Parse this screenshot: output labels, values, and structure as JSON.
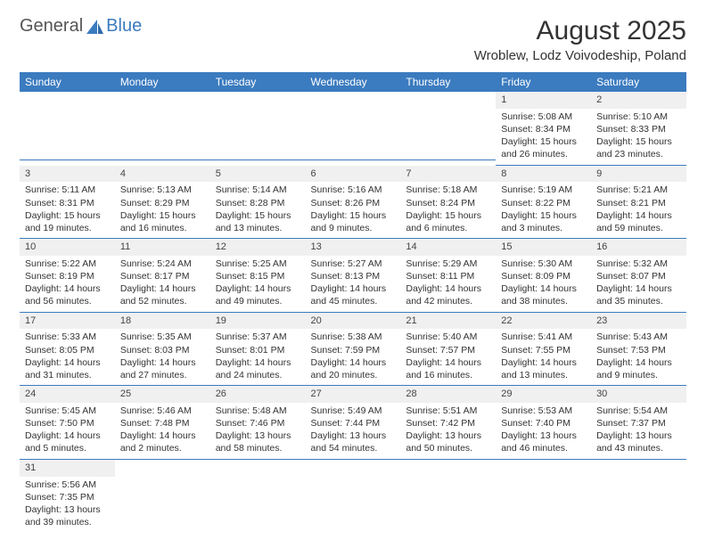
{
  "logo": {
    "part1": "General",
    "part2": "Blue"
  },
  "title": "August 2025",
  "subtitle": "Wroblew, Lodz Voivodeship, Poland",
  "colors": {
    "header_bg": "#3b7bbf",
    "header_text": "#ffffff",
    "daynum_bg": "#f0f0f0",
    "row_divider": "#3b7bbf",
    "text": "#333333"
  },
  "typography": {
    "title_fontsize": 30,
    "subtitle_fontsize": 15,
    "header_fontsize": 12,
    "cell_fontsize": 10.5
  },
  "day_headers": [
    "Sunday",
    "Monday",
    "Tuesday",
    "Wednesday",
    "Thursday",
    "Friday",
    "Saturday"
  ],
  "weeks": [
    [
      null,
      null,
      null,
      null,
      null,
      {
        "n": "1",
        "sr": "Sunrise: 5:08 AM",
        "ss": "Sunset: 8:34 PM",
        "dl": "Daylight: 15 hours and 26 minutes."
      },
      {
        "n": "2",
        "sr": "Sunrise: 5:10 AM",
        "ss": "Sunset: 8:33 PM",
        "dl": "Daylight: 15 hours and 23 minutes."
      }
    ],
    [
      {
        "n": "3",
        "sr": "Sunrise: 5:11 AM",
        "ss": "Sunset: 8:31 PM",
        "dl": "Daylight: 15 hours and 19 minutes."
      },
      {
        "n": "4",
        "sr": "Sunrise: 5:13 AM",
        "ss": "Sunset: 8:29 PM",
        "dl": "Daylight: 15 hours and 16 minutes."
      },
      {
        "n": "5",
        "sr": "Sunrise: 5:14 AM",
        "ss": "Sunset: 8:28 PM",
        "dl": "Daylight: 15 hours and 13 minutes."
      },
      {
        "n": "6",
        "sr": "Sunrise: 5:16 AM",
        "ss": "Sunset: 8:26 PM",
        "dl": "Daylight: 15 hours and 9 minutes."
      },
      {
        "n": "7",
        "sr": "Sunrise: 5:18 AM",
        "ss": "Sunset: 8:24 PM",
        "dl": "Daylight: 15 hours and 6 minutes."
      },
      {
        "n": "8",
        "sr": "Sunrise: 5:19 AM",
        "ss": "Sunset: 8:22 PM",
        "dl": "Daylight: 15 hours and 3 minutes."
      },
      {
        "n": "9",
        "sr": "Sunrise: 5:21 AM",
        "ss": "Sunset: 8:21 PM",
        "dl": "Daylight: 14 hours and 59 minutes."
      }
    ],
    [
      {
        "n": "10",
        "sr": "Sunrise: 5:22 AM",
        "ss": "Sunset: 8:19 PM",
        "dl": "Daylight: 14 hours and 56 minutes."
      },
      {
        "n": "11",
        "sr": "Sunrise: 5:24 AM",
        "ss": "Sunset: 8:17 PM",
        "dl": "Daylight: 14 hours and 52 minutes."
      },
      {
        "n": "12",
        "sr": "Sunrise: 5:25 AM",
        "ss": "Sunset: 8:15 PM",
        "dl": "Daylight: 14 hours and 49 minutes."
      },
      {
        "n": "13",
        "sr": "Sunrise: 5:27 AM",
        "ss": "Sunset: 8:13 PM",
        "dl": "Daylight: 14 hours and 45 minutes."
      },
      {
        "n": "14",
        "sr": "Sunrise: 5:29 AM",
        "ss": "Sunset: 8:11 PM",
        "dl": "Daylight: 14 hours and 42 minutes."
      },
      {
        "n": "15",
        "sr": "Sunrise: 5:30 AM",
        "ss": "Sunset: 8:09 PM",
        "dl": "Daylight: 14 hours and 38 minutes."
      },
      {
        "n": "16",
        "sr": "Sunrise: 5:32 AM",
        "ss": "Sunset: 8:07 PM",
        "dl": "Daylight: 14 hours and 35 minutes."
      }
    ],
    [
      {
        "n": "17",
        "sr": "Sunrise: 5:33 AM",
        "ss": "Sunset: 8:05 PM",
        "dl": "Daylight: 14 hours and 31 minutes."
      },
      {
        "n": "18",
        "sr": "Sunrise: 5:35 AM",
        "ss": "Sunset: 8:03 PM",
        "dl": "Daylight: 14 hours and 27 minutes."
      },
      {
        "n": "19",
        "sr": "Sunrise: 5:37 AM",
        "ss": "Sunset: 8:01 PM",
        "dl": "Daylight: 14 hours and 24 minutes."
      },
      {
        "n": "20",
        "sr": "Sunrise: 5:38 AM",
        "ss": "Sunset: 7:59 PM",
        "dl": "Daylight: 14 hours and 20 minutes."
      },
      {
        "n": "21",
        "sr": "Sunrise: 5:40 AM",
        "ss": "Sunset: 7:57 PM",
        "dl": "Daylight: 14 hours and 16 minutes."
      },
      {
        "n": "22",
        "sr": "Sunrise: 5:41 AM",
        "ss": "Sunset: 7:55 PM",
        "dl": "Daylight: 14 hours and 13 minutes."
      },
      {
        "n": "23",
        "sr": "Sunrise: 5:43 AM",
        "ss": "Sunset: 7:53 PM",
        "dl": "Daylight: 14 hours and 9 minutes."
      }
    ],
    [
      {
        "n": "24",
        "sr": "Sunrise: 5:45 AM",
        "ss": "Sunset: 7:50 PM",
        "dl": "Daylight: 14 hours and 5 minutes."
      },
      {
        "n": "25",
        "sr": "Sunrise: 5:46 AM",
        "ss": "Sunset: 7:48 PM",
        "dl": "Daylight: 14 hours and 2 minutes."
      },
      {
        "n": "26",
        "sr": "Sunrise: 5:48 AM",
        "ss": "Sunset: 7:46 PM",
        "dl": "Daylight: 13 hours and 58 minutes."
      },
      {
        "n": "27",
        "sr": "Sunrise: 5:49 AM",
        "ss": "Sunset: 7:44 PM",
        "dl": "Daylight: 13 hours and 54 minutes."
      },
      {
        "n": "28",
        "sr": "Sunrise: 5:51 AM",
        "ss": "Sunset: 7:42 PM",
        "dl": "Daylight: 13 hours and 50 minutes."
      },
      {
        "n": "29",
        "sr": "Sunrise: 5:53 AM",
        "ss": "Sunset: 7:40 PM",
        "dl": "Daylight: 13 hours and 46 minutes."
      },
      {
        "n": "30",
        "sr": "Sunrise: 5:54 AM",
        "ss": "Sunset: 7:37 PM",
        "dl": "Daylight: 13 hours and 43 minutes."
      }
    ],
    [
      {
        "n": "31",
        "sr": "Sunrise: 5:56 AM",
        "ss": "Sunset: 7:35 PM",
        "dl": "Daylight: 13 hours and 39 minutes."
      },
      null,
      null,
      null,
      null,
      null,
      null
    ]
  ]
}
